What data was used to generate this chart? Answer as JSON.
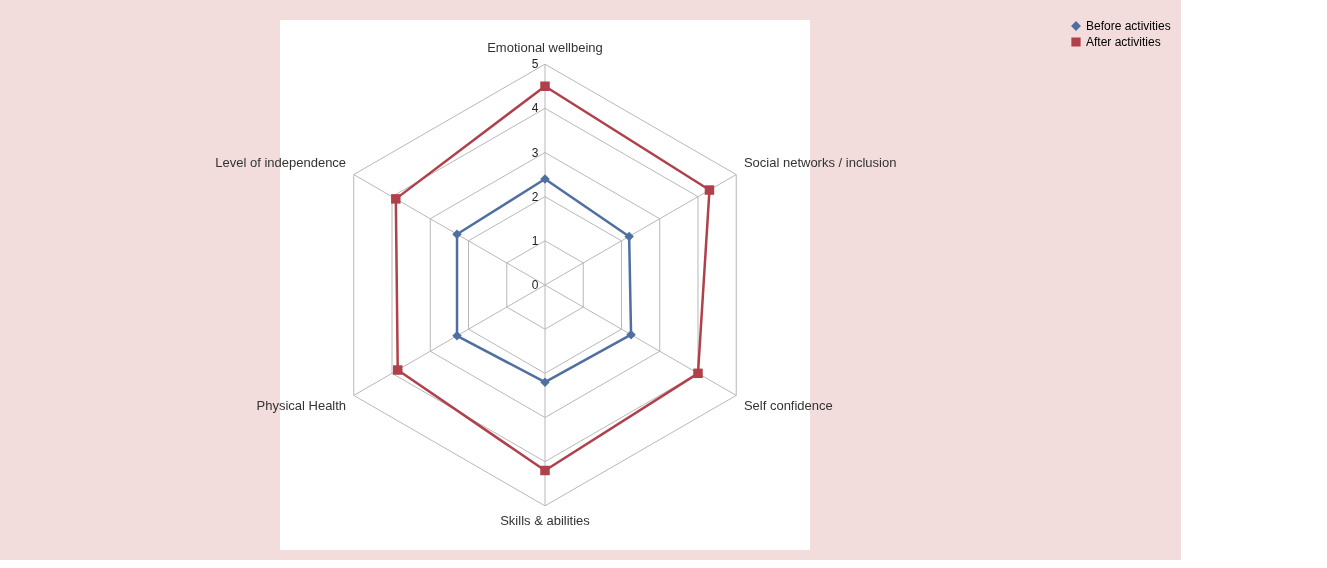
{
  "chart_data": {
    "type": "radar",
    "categories": [
      "Emotional wellbeing",
      "Social networks / inclusion",
      "Self confidence",
      "Skills & abilities",
      "Physical Health",
      "Level of independence"
    ],
    "ylim": [
      0,
      5
    ],
    "yticks": [
      0,
      1,
      2,
      3,
      4,
      5
    ],
    "grid": true,
    "legend": "right",
    "line_style": "solid",
    "series": [
      {
        "name": "Before activities",
        "color": "#4f6fa0",
        "marker": "diamond",
        "values": [
          2.4,
          2.2,
          2.25,
          2.2,
          2.3,
          2.3
        ]
      },
      {
        "name": "After activities",
        "color": "#b0404a",
        "marker": "square",
        "values": [
          4.5,
          4.3,
          4.0,
          4.2,
          3.85,
          3.9
        ]
      }
    ]
  }
}
